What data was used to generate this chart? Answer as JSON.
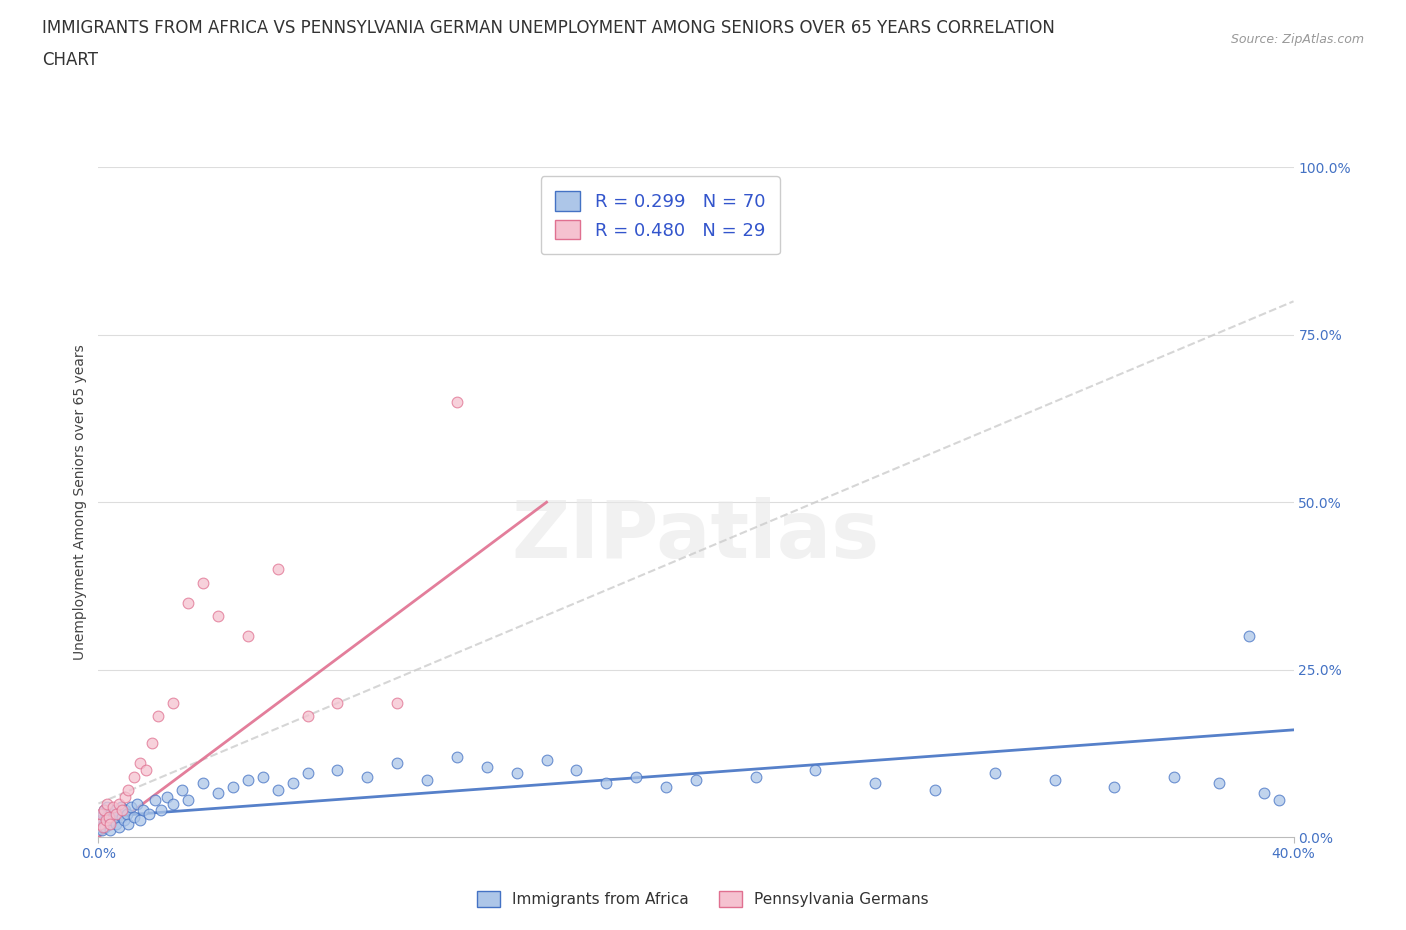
{
  "title_line1": "IMMIGRANTS FROM AFRICA VS PENNSYLVANIA GERMAN UNEMPLOYMENT AMONG SENIORS OVER 65 YEARS CORRELATION",
  "title_line2": "CHART",
  "source": "Source: ZipAtlas.com",
  "ylabel": "Unemployment Among Seniors over 65 years",
  "x_min": 0.0,
  "x_max": 40.0,
  "y_min": 0.0,
  "y_max": 100.0,
  "series1_name": "Immigrants from Africa",
  "series1_color": "#adc6e8",
  "series1_edge_color": "#4472c4",
  "series1_line_color": "#4472c4",
  "series1_R": 0.299,
  "series1_N": 70,
  "series2_name": "Pennsylvania Germans",
  "series2_color": "#f5c2d0",
  "series2_edge_color": "#e07090",
  "series2_line_color": "#e07090",
  "series2_R": 0.48,
  "series2_N": 29,
  "legend_text_color": "#3355cc",
  "watermark_color": "#e8e8e8",
  "background_color": "#ffffff",
  "grid_color": "#dddddd",
  "title_fontsize": 12,
  "axis_label_fontsize": 10,
  "tick_fontsize": 10,
  "series1_x": [
    0.05,
    0.1,
    0.12,
    0.15,
    0.18,
    0.2,
    0.22,
    0.25,
    0.28,
    0.3,
    0.35,
    0.38,
    0.4,
    0.45,
    0.5,
    0.55,
    0.6,
    0.65,
    0.7,
    0.75,
    0.8,
    0.85,
    0.9,
    0.95,
    1.0,
    1.1,
    1.2,
    1.3,
    1.4,
    1.5,
    1.7,
    1.9,
    2.1,
    2.3,
    2.5,
    2.8,
    3.0,
    3.5,
    4.0,
    4.5,
    5.0,
    5.5,
    6.0,
    6.5,
    7.0,
    8.0,
    9.0,
    10.0,
    11.0,
    12.0,
    13.0,
    14.0,
    15.0,
    16.0,
    17.0,
    18.0,
    19.0,
    20.0,
    22.0,
    24.0,
    26.0,
    28.0,
    30.0,
    32.0,
    34.0,
    36.0,
    37.5,
    38.5,
    39.0,
    39.5
  ],
  "series1_y": [
    1.5,
    2.5,
    1.0,
    3.5,
    2.0,
    4.0,
    1.5,
    3.0,
    2.5,
    4.5,
    2.0,
    3.5,
    1.0,
    2.5,
    3.0,
    4.0,
    2.0,
    3.5,
    1.5,
    4.5,
    3.0,
    2.5,
    4.0,
    3.5,
    2.0,
    4.5,
    3.0,
    5.0,
    2.5,
    4.0,
    3.5,
    5.5,
    4.0,
    6.0,
    5.0,
    7.0,
    5.5,
    8.0,
    6.5,
    7.5,
    8.5,
    9.0,
    7.0,
    8.0,
    9.5,
    10.0,
    9.0,
    11.0,
    8.5,
    12.0,
    10.5,
    9.5,
    11.5,
    10.0,
    8.0,
    9.0,
    7.5,
    8.5,
    9.0,
    10.0,
    8.0,
    7.0,
    9.5,
    8.5,
    7.5,
    9.0,
    8.0,
    30.0,
    6.5,
    5.5
  ],
  "series2_x": [
    0.05,
    0.1,
    0.15,
    0.2,
    0.25,
    0.3,
    0.35,
    0.4,
    0.5,
    0.6,
    0.7,
    0.8,
    0.9,
    1.0,
    1.2,
    1.4,
    1.6,
    1.8,
    2.0,
    2.5,
    3.0,
    3.5,
    4.0,
    5.0,
    6.0,
    7.0,
    8.0,
    10.0,
    12.0
  ],
  "series2_y": [
    2.0,
    3.5,
    1.5,
    4.0,
    2.5,
    5.0,
    3.0,
    2.0,
    4.5,
    3.5,
    5.0,
    4.0,
    6.0,
    7.0,
    9.0,
    11.0,
    10.0,
    14.0,
    18.0,
    20.0,
    35.0,
    38.0,
    33.0,
    30.0,
    40.0,
    18.0,
    20.0,
    20.0,
    65.0
  ],
  "trend1_x0": 0.0,
  "trend1_y0": 3.0,
  "trend1_x1": 40.0,
  "trend1_y1": 16.0,
  "trend2_x0": 0.0,
  "trend2_y0": 0.0,
  "trend2_x1": 15.0,
  "trend2_y1": 50.0,
  "dash_x0": 0.0,
  "dash_y0": 5.0,
  "dash_x1": 40.0,
  "dash_y1": 80.0
}
